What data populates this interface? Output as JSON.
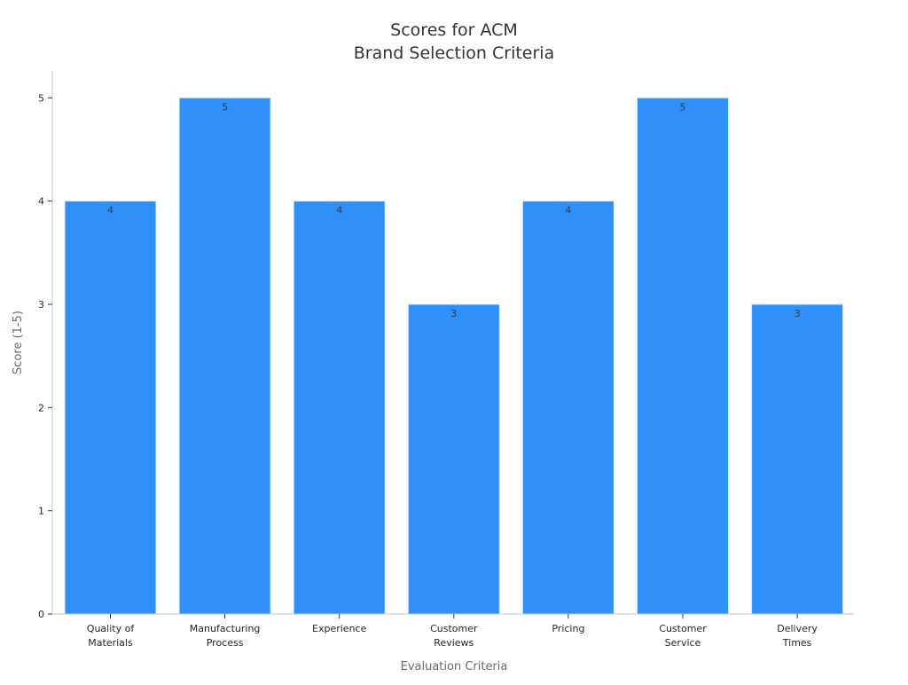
{
  "chart_data": {
    "type": "bar",
    "title_lines": [
      "Scores for ACM",
      "Brand Selection Criteria"
    ],
    "xlabel": "Evaluation Criteria",
    "ylabel": "Score (1-5)",
    "categories": [
      [
        "Quality of",
        "Materials"
      ],
      [
        "Manufacturing",
        "Process"
      ],
      [
        "Experience"
      ],
      [
        "Customer",
        "Reviews"
      ],
      [
        "Pricing"
      ],
      [
        "Customer",
        "Service"
      ],
      [
        "Delivery",
        "Times"
      ]
    ],
    "values": [
      4,
      5,
      4,
      3,
      4,
      5,
      3
    ],
    "value_labels": [
      "4",
      "5",
      "4",
      "3",
      "4",
      "5",
      "3"
    ],
    "yticks": [
      0,
      1,
      2,
      3,
      4,
      5
    ],
    "ylim": [
      0,
      5.26
    ],
    "grid": false,
    "legend": "none",
    "colors": {
      "bar": "#2f91f8",
      "bar_edge": "#d8e8f8",
      "axis": "#c8c8c8"
    }
  }
}
